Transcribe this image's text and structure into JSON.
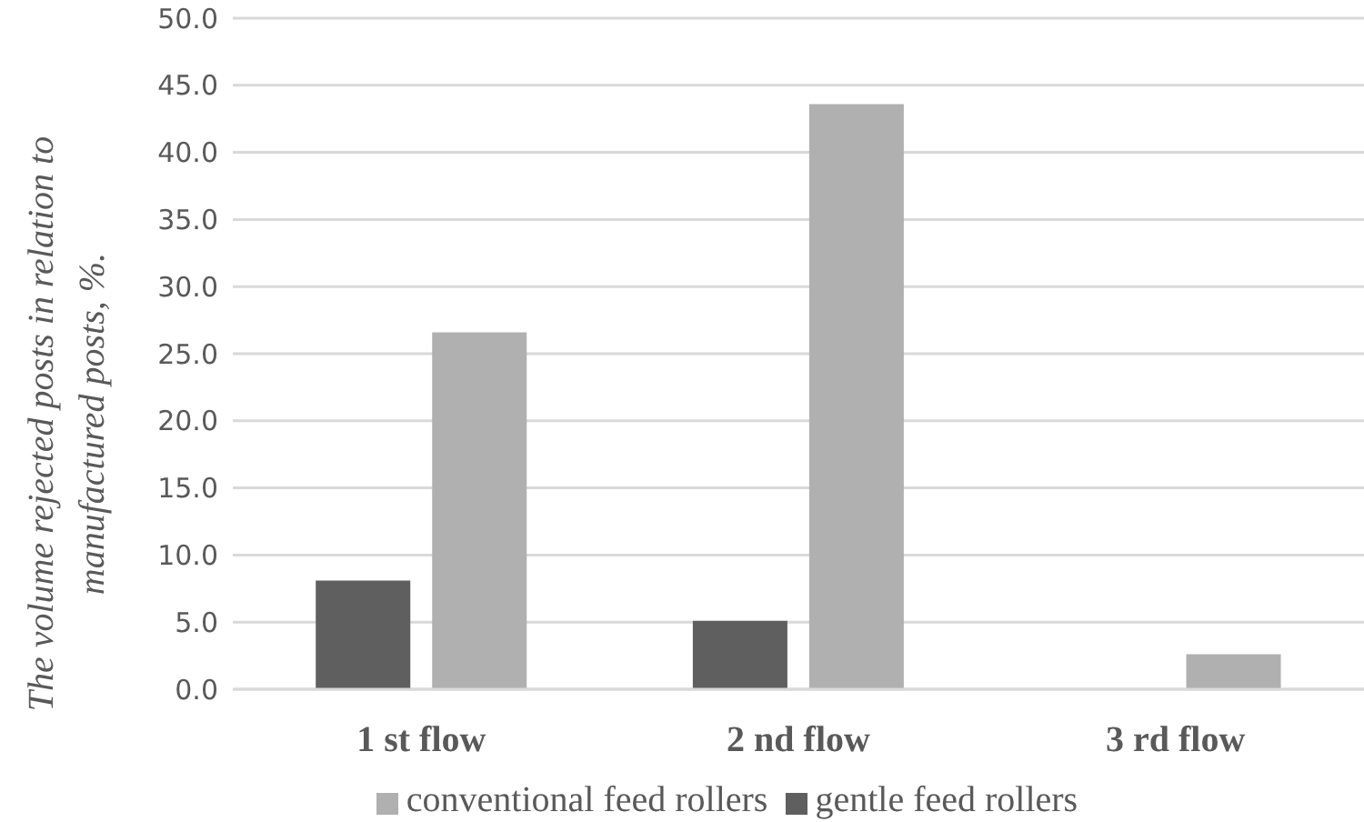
{
  "chart_data": {
    "type": "bar",
    "ylabel": "The volume  rejected posts in relation to manufactured posts, %.",
    "categories": [
      "1 st flow",
      "2 nd flow",
      "3 rd flow"
    ],
    "series": [
      {
        "name": "gentle feed rollers",
        "color": "#5f5f5f",
        "values": [
          8.1,
          5.1,
          0
        ]
      },
      {
        "name": "conventional feed rollers",
        "color": "#b0b0b0",
        "values": [
          26.6,
          43.6,
          2.6
        ]
      }
    ],
    "ylim": [
      0,
      50
    ],
    "yticks": [
      {
        "value": 0,
        "label": "0.0"
      },
      {
        "value": 5,
        "label": "5.0"
      },
      {
        "value": 10,
        "label": "10.0"
      },
      {
        "value": 15,
        "label": "15.0"
      },
      {
        "value": 20,
        "label": "20.0"
      },
      {
        "value": 25,
        "label": "25.0"
      },
      {
        "value": 30,
        "label": "30.0"
      },
      {
        "value": 35,
        "label": "35.0"
      },
      {
        "value": 40,
        "label": "40.0"
      },
      {
        "value": 45,
        "label": "45.0"
      },
      {
        "value": 50,
        "label": "50.0"
      }
    ],
    "grid": "y",
    "legend": "bottom"
  }
}
